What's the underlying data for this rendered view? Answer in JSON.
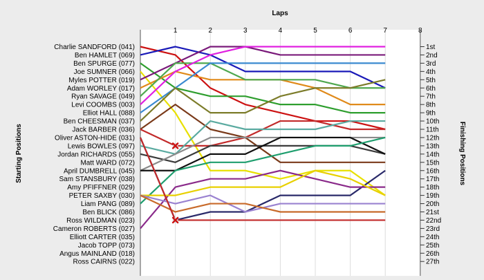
{
  "chart_data": {
    "type": "line",
    "title": "Laps",
    "ylabel_left": "Starting Positions",
    "ylabel_right": "Finishing Positions",
    "laps": [
      1,
      2,
      3,
      4,
      5,
      6,
      7,
      8
    ],
    "lap_labels": [
      "1",
      "2",
      "3",
      "4",
      "5",
      "6",
      "7",
      "8"
    ],
    "start_labels": [
      "Charlie SANDFORD (041)",
      "Ben HAMLET (069)",
      "Ben SPURGE (077)",
      "Joe SUMNER (066)",
      "Myles POTTER (019)",
      "Adam WORLEY (017)",
      "Ryan SAVAGE (049)",
      "Levi COOMBS (003)",
      "Elliot HALL (088)",
      "Ben CHEESMAN (037)",
      "Jack BARBER (036)",
      "Oliver ASTON-HIDE (031)",
      "Lewis BOWLES (097)",
      "Jordan RICHARDS (055)",
      "Matt WARD (072)",
      "April DUMBRELL (045)",
      "Sam STANSBURY (038)",
      "Amy PFIFFNER (029)",
      "PETER SAXBY (030)",
      "Liam PANG (089)",
      "Ben BLICK (086)",
      "Ross WILDMAN (023)",
      "Cameron ROBERTS (027)",
      "Elliott CARTER (035)",
      "Jacob TOPP (073)",
      "Angus MAINLAND (018)",
      "Ross CAIRNS (022)"
    ],
    "finish_labels": [
      "1st",
      "2nd",
      "3rd",
      "4th",
      "5th",
      "6th",
      "7th",
      "8th",
      "9th",
      "10th",
      "11th",
      "12th",
      "13th",
      "14th",
      "15th",
      "16th",
      "17th",
      "18th",
      "19th",
      "20th",
      "21st",
      "22nd",
      "23rd",
      "24th",
      "25th",
      "26th",
      "27th"
    ],
    "series": [
      {
        "color": "#cc1111",
        "positions": [
          1,
          2,
          6,
          8,
          9,
          10,
          10,
          11
        ]
      },
      {
        "color": "#1a1ab8",
        "positions": [
          2,
          1,
          2,
          4,
          4,
          4,
          4,
          6
        ]
      },
      {
        "color": "#2e9e2e",
        "positions": [
          3,
          6,
          7,
          7,
          8,
          8,
          9,
          9
        ]
      },
      {
        "color": "#e8e000",
        "positions": [
          4,
          9,
          16,
          16,
          17,
          16,
          16,
          19
        ]
      },
      {
        "color": "#7a1a7a",
        "positions": [
          5,
          3,
          1,
          1,
          2,
          2,
          2,
          2
        ]
      },
      {
        "color": "#e08a1a",
        "positions": [
          6,
          4,
          5,
          5,
          5,
          6,
          8,
          8
        ]
      },
      {
        "color": "#4fa84f",
        "positions": [
          7,
          3,
          3,
          5,
          5,
          5,
          6,
          6
        ]
      },
      {
        "color": "#e020e0",
        "positions": [
          8,
          4,
          2,
          1,
          1,
          1,
          1,
          1
        ]
      },
      {
        "color": "#3a8ad0",
        "positions": [
          9,
          6,
          3,
          3,
          3,
          3,
          3,
          3
        ]
      },
      {
        "color": "#7c7c2a",
        "positions": [
          10,
          6,
          9,
          9,
          7,
          6,
          6,
          5
        ]
      },
      {
        "color": "#7a3a1a",
        "positions": [
          11,
          8,
          11,
          12,
          15,
          15,
          15,
          15
        ]
      },
      {
        "color": "#c22a2a",
        "positions": [
          11,
          13,
          13,
          12,
          10,
          10,
          11,
          11
        ],
        "dnf_lap": 1
      },
      {
        "color": "#2a2a6a",
        "positions": [
          12,
          22,
          21,
          21,
          19,
          19,
          19,
          16
        ]
      },
      {
        "color": "#5aaaa0",
        "positions": [
          13,
          14,
          10,
          11,
          11,
          11,
          10,
          10
        ]
      },
      {
        "color": "#3a3a3a",
        "positions": [
          14,
          15,
          13,
          13,
          13,
          13,
          13,
          14
        ]
      },
      {
        "color": "#8a8a8a",
        "positions": [
          16,
          14,
          12,
          12,
          12,
          12,
          12,
          12
        ]
      },
      {
        "color": "#111111",
        "positions": [
          16,
          16,
          14,
          14,
          12,
          12,
          12,
          14
        ]
      },
      {
        "color": "#1e9e6e",
        "positions": [
          20,
          16,
          15,
          15,
          14,
          13,
          13,
          12
        ]
      },
      {
        "color": "#8a2a8a",
        "positions": [
          23,
          18,
          17,
          17,
          16,
          17,
          18,
          18
        ]
      },
      {
        "color": "#e8d000",
        "positions": [
          19,
          19,
          18,
          18,
          18,
          16,
          17,
          19
        ]
      },
      {
        "color": "#9a82d0",
        "positions": [
          19,
          20,
          19,
          21,
          20,
          20,
          20,
          20
        ]
      },
      {
        "color": "#c86a2a",
        "positions": [
          19,
          21,
          20,
          20,
          21,
          21,
          21,
          21
        ]
      },
      {
        "color": "#c22a2a",
        "positions": [
          12,
          22,
          22,
          22,
          22,
          22,
          22,
          22
        ],
        "dnf_lap": 1
      }
    ]
  }
}
